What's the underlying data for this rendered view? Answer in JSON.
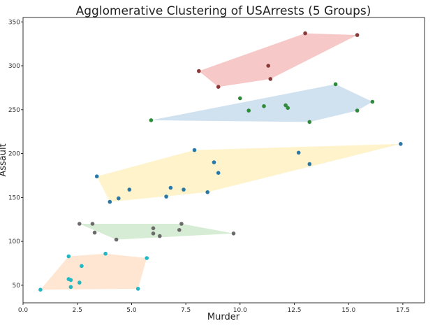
{
  "chart_data": {
    "type": "scatter",
    "title": "Agglomerative Clustering of USArrests (5 Groups)",
    "xlabel": "Murder",
    "ylabel": "Assault",
    "xlim": [
      0,
      18.5
    ],
    "ylim": [
      30,
      355
    ],
    "xticks": [
      0.0,
      2.5,
      5.0,
      7.5,
      10.0,
      12.5,
      15.0,
      17.5
    ],
    "xtick_labels": [
      "0.0",
      "2.5",
      "5.0",
      "7.5",
      "10.0",
      "12.5",
      "15.0",
      "17.5"
    ],
    "yticks": [
      50,
      100,
      150,
      200,
      250,
      300,
      350
    ],
    "ytick_labels": [
      "50",
      "100",
      "150",
      "200",
      "250",
      "300",
      "350"
    ],
    "grid": false,
    "clusters": [
      {
        "id": "red",
        "point_color": "#8b3a3a",
        "hull_color": "#ef9a9a",
        "points": [
          [
            8.1,
            294
          ],
          [
            9.0,
            276
          ],
          [
            11.3,
            300
          ],
          [
            11.4,
            285
          ],
          [
            13.0,
            337
          ],
          [
            15.4,
            335
          ]
        ],
        "hull": [
          [
            8.1,
            294
          ],
          [
            13.0,
            337
          ],
          [
            15.4,
            335
          ],
          [
            11.4,
            285
          ],
          [
            9.0,
            276
          ]
        ]
      },
      {
        "id": "blue",
        "point_color": "#2e8b3a",
        "hull_color": "#a9c8e4",
        "points": [
          [
            5.9,
            238
          ],
          [
            10.0,
            263
          ],
          [
            10.4,
            249
          ],
          [
            11.1,
            254
          ],
          [
            12.1,
            255
          ],
          [
            12.2,
            252
          ],
          [
            13.2,
            236
          ],
          [
            14.4,
            279
          ],
          [
            15.4,
            249
          ],
          [
            16.1,
            259
          ]
        ],
        "hull": [
          [
            5.9,
            238
          ],
          [
            14.4,
            279
          ],
          [
            16.1,
            259
          ],
          [
            15.4,
            249
          ],
          [
            13.2,
            236
          ]
        ]
      },
      {
        "id": "yellow",
        "point_color": "#2a78a8",
        "hull_color": "#fdeaa1",
        "points": [
          [
            3.4,
            174
          ],
          [
            4.0,
            145
          ],
          [
            4.4,
            149
          ],
          [
            4.9,
            159
          ],
          [
            6.6,
            151
          ],
          [
            6.8,
            161
          ],
          [
            7.4,
            159
          ],
          [
            7.9,
            204
          ],
          [
            8.5,
            156
          ],
          [
            8.8,
            190
          ],
          [
            9.0,
            178
          ],
          [
            12.7,
            201
          ],
          [
            13.2,
            188
          ],
          [
            17.4,
            211
          ]
        ],
        "hull": [
          [
            3.4,
            174
          ],
          [
            7.9,
            204
          ],
          [
            17.4,
            211
          ],
          [
            8.5,
            156
          ],
          [
            4.0,
            145
          ]
        ]
      },
      {
        "id": "green",
        "point_color": "#6b6b6b",
        "hull_color": "#b7ddb0",
        "points": [
          [
            2.6,
            120
          ],
          [
            3.2,
            120
          ],
          [
            3.3,
            110
          ],
          [
            4.3,
            102
          ],
          [
            6.0,
            115
          ],
          [
            6.0,
            109
          ],
          [
            6.3,
            106
          ],
          [
            7.2,
            113
          ],
          [
            7.3,
            120
          ],
          [
            9.7,
            109
          ]
        ],
        "hull": [
          [
            2.6,
            120
          ],
          [
            7.3,
            120
          ],
          [
            9.7,
            109
          ],
          [
            4.3,
            102
          ]
        ]
      },
      {
        "id": "orange",
        "point_color": "#1fb8c4",
        "hull_color": "#fdd2ad",
        "points": [
          [
            0.8,
            45
          ],
          [
            2.1,
            83
          ],
          [
            2.1,
            57
          ],
          [
            2.2,
            56
          ],
          [
            2.2,
            48
          ],
          [
            2.6,
            53
          ],
          [
            2.7,
            72
          ],
          [
            3.8,
            86
          ],
          [
            5.3,
            46
          ],
          [
            5.7,
            81
          ]
        ],
        "hull": [
          [
            0.8,
            45
          ],
          [
            2.1,
            83
          ],
          [
            3.8,
            86
          ],
          [
            5.7,
            81
          ],
          [
            5.3,
            46
          ]
        ]
      }
    ]
  }
}
